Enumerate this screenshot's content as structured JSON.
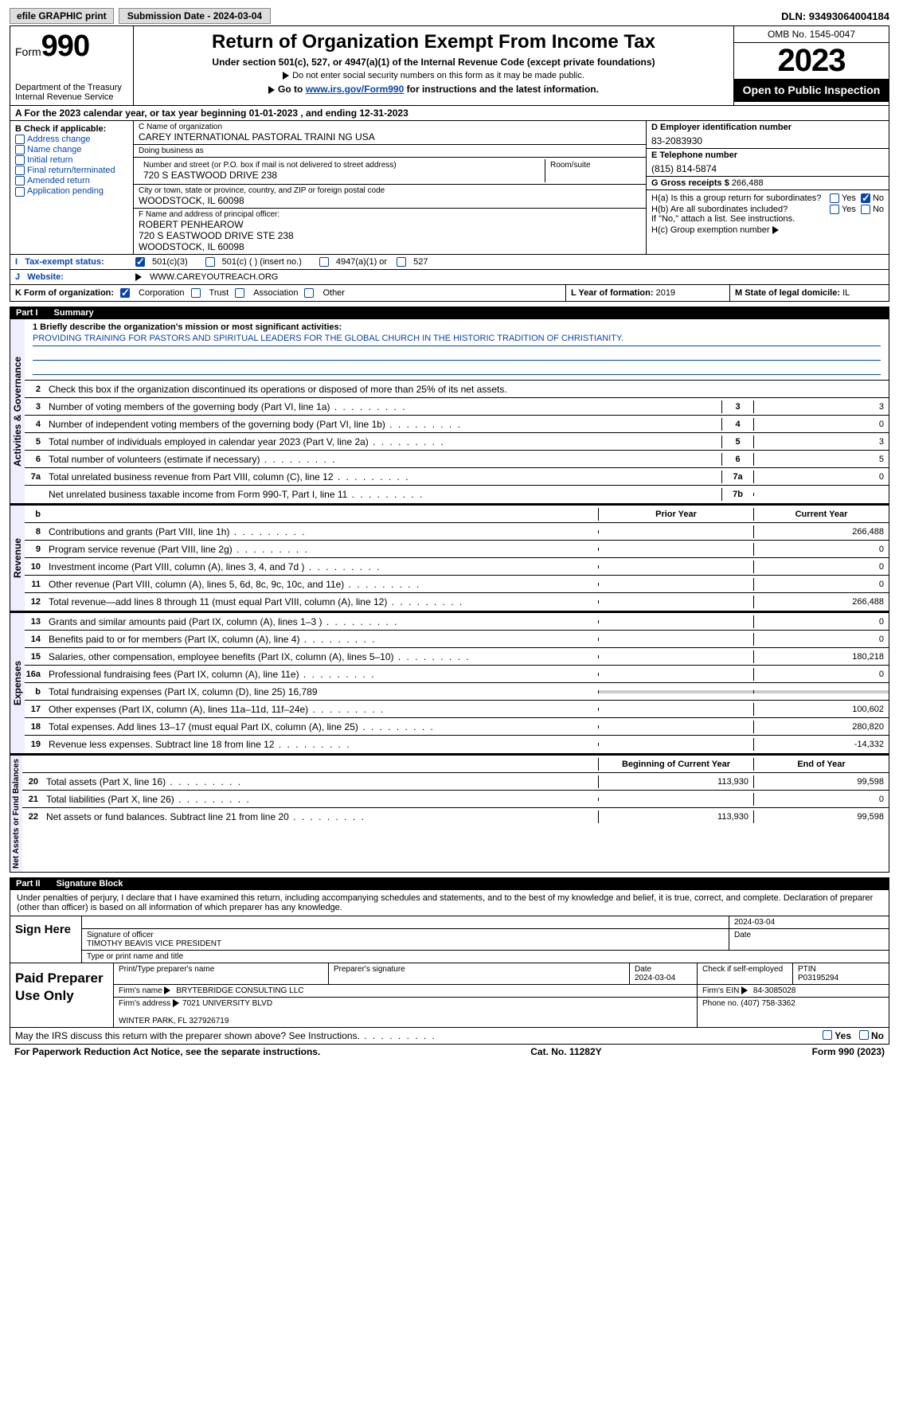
{
  "topbar": {
    "efile": "efile GRAPHIC print",
    "submission": "Submission Date - 2024-03-04",
    "dln": "DLN: 93493064004184"
  },
  "header": {
    "form_label": "Form",
    "form_num": "990",
    "dept": "Department of the Treasury\nInternal Revenue Service",
    "title": "Return of Organization Exempt From Income Tax",
    "subtitle": "Under section 501(c), 527, or 4947(a)(1) of the Internal Revenue Code (except private foundations)",
    "ssn_note": "Do not enter social security numbers on this form as it may be made public.",
    "goto": "Go to www.irs.gov/Form990 for instructions and the latest information.",
    "omb": "OMB No. 1545-0047",
    "year": "2023",
    "inspection": "Open to Public Inspection"
  },
  "rowA": "A For the 2023 calendar year, or tax year beginning 01-01-2023    , and ending 12-31-2023",
  "colB": {
    "header": "B Check if applicable:",
    "items": [
      "Address change",
      "Name change",
      "Initial return",
      "Final return/terminated",
      "Amended return",
      "Application pending"
    ]
  },
  "colC": {
    "name_lbl": "C Name of organization",
    "name": "CAREY INTERNATIONAL PASTORAL TRAINI NG USA",
    "dba_lbl": "Doing business as",
    "dba": "",
    "addr_lbl": "Number and street (or P.O. box if mail is not delivered to street address)",
    "addr": "720 S EASTWOOD DRIVE 238",
    "room_lbl": "Room/suite",
    "city_lbl": "City or town, state or province, country, and ZIP or foreign postal code",
    "city": "WOODSTOCK, IL  60098",
    "officer_lbl": "F  Name and address of principal officer:",
    "officer": "ROBERT PENHEAROW\n720 S EASTWOOD DRIVE STE 238\nWOODSTOCK, IL  60098"
  },
  "colD": {
    "ein_lbl": "D Employer identification number",
    "ein": "83-2083930",
    "phone_lbl": "E Telephone number",
    "phone": "(815) 814-5874",
    "gross_lbl": "G Gross receipts $",
    "gross": "266,488",
    "ha": "H(a)  Is this a group return for subordinates?",
    "hb": "H(b)  Are all subordinates included?",
    "hb_note": "If \"No,\" attach a list. See instructions.",
    "hc": "H(c)  Group exemption number",
    "yes": "Yes",
    "no": "No"
  },
  "statusI": {
    "lbl": "Tax-exempt status:",
    "opts": [
      "501(c)(3)",
      "501(c) (  ) (insert no.)",
      "4947(a)(1) or",
      "527"
    ]
  },
  "statusJ": {
    "lbl": "Website:",
    "val": "WWW.CAREYOUTREACH.ORG"
  },
  "statusK": {
    "lbl": "K Form of organization:",
    "opts": [
      "Corporation",
      "Trust",
      "Association",
      "Other"
    ]
  },
  "statusL": {
    "lbl": "L Year of formation:",
    "val": "2019"
  },
  "statusM": {
    "lbl": "M State of legal domicile:",
    "val": "IL"
  },
  "part1": {
    "title": "Part I",
    "name": "Summary",
    "mission_lbl": "1   Briefly describe the organization's mission or most significant activities:",
    "mission": "PROVIDING TRAINING FOR PASTORS AND SPIRITUAL LEADERS FOR THE GLOBAL CHURCH IN THE HISTORIC TRADITION OF CHRISTIANITY.",
    "line2": "Check this box       if the organization discontinued its operations or disposed of more than 25% of its net assets.",
    "gov_label": "Activities & Governance",
    "rev_label": "Revenue",
    "exp_label": "Expenses",
    "net_label": "Net Assets or Fund Balances",
    "prior_hdr": "Prior Year",
    "current_hdr": "Current Year",
    "boy_hdr": "Beginning of Current Year",
    "eoy_hdr": "End of Year",
    "rows_gov": [
      {
        "n": "3",
        "d": "Number of voting members of the governing body (Part VI, line 1a)",
        "box": "3",
        "v": "3"
      },
      {
        "n": "4",
        "d": "Number of independent voting members of the governing body (Part VI, line 1b)",
        "box": "4",
        "v": "0"
      },
      {
        "n": "5",
        "d": "Total number of individuals employed in calendar year 2023 (Part V, line 2a)",
        "box": "5",
        "v": "3"
      },
      {
        "n": "6",
        "d": "Total number of volunteers (estimate if necessary)",
        "box": "6",
        "v": "5"
      },
      {
        "n": "7a",
        "d": "Total unrelated business revenue from Part VIII, column (C), line 12",
        "box": "7a",
        "v": "0"
      },
      {
        "n": "",
        "d": "Net unrelated business taxable income from Form 990-T, Part I, line 11",
        "box": "7b",
        "v": ""
      }
    ],
    "rows_rev": [
      {
        "n": "8",
        "d": "Contributions and grants (Part VIII, line 1h)",
        "p": "",
        "c": "266,488"
      },
      {
        "n": "9",
        "d": "Program service revenue (Part VIII, line 2g)",
        "p": "",
        "c": "0"
      },
      {
        "n": "10",
        "d": "Investment income (Part VIII, column (A), lines 3, 4, and 7d )",
        "p": "",
        "c": "0"
      },
      {
        "n": "11",
        "d": "Other revenue (Part VIII, column (A), lines 5, 6d, 8c, 9c, 10c, and 11e)",
        "p": "",
        "c": "0"
      },
      {
        "n": "12",
        "d": "Total revenue—add lines 8 through 11 (must equal Part VIII, column (A), line 12)",
        "p": "",
        "c": "266,488"
      }
    ],
    "rows_exp": [
      {
        "n": "13",
        "d": "Grants and similar amounts paid (Part IX, column (A), lines 1–3 )",
        "p": "",
        "c": "0"
      },
      {
        "n": "14",
        "d": "Benefits paid to or for members (Part IX, column (A), line 4)",
        "p": "",
        "c": "0"
      },
      {
        "n": "15",
        "d": "Salaries, other compensation, employee benefits (Part IX, column (A), lines 5–10)",
        "p": "",
        "c": "180,218"
      },
      {
        "n": "16a",
        "d": "Professional fundraising fees (Part IX, column (A), line 11e)",
        "p": "",
        "c": "0"
      },
      {
        "n": "b",
        "d": "Total fundraising expenses (Part IX, column (D), line 25) 16,789",
        "p": "shaded",
        "c": "shaded"
      },
      {
        "n": "17",
        "d": "Other expenses (Part IX, column (A), lines 11a–11d, 11f–24e)",
        "p": "",
        "c": "100,602"
      },
      {
        "n": "18",
        "d": "Total expenses. Add lines 13–17 (must equal Part IX, column (A), line 25)",
        "p": "",
        "c": "280,820"
      },
      {
        "n": "19",
        "d": "Revenue less expenses. Subtract line 18 from line 12",
        "p": "",
        "c": "-14,332"
      }
    ],
    "rows_net": [
      {
        "n": "20",
        "d": "Total assets (Part X, line 16)",
        "p": "113,930",
        "c": "99,598"
      },
      {
        "n": "21",
        "d": "Total liabilities (Part X, line 26)",
        "p": "",
        "c": "0"
      },
      {
        "n": "22",
        "d": "Net assets or fund balances. Subtract line 21 from line 20",
        "p": "113,930",
        "c": "99,598"
      }
    ]
  },
  "part2": {
    "title": "Part II",
    "name": "Signature Block",
    "decl": "Under penalties of perjury, I declare that I have examined this return, including accompanying schedules and statements, and to the best of my knowledge and belief, it is true, correct, and complete. Declaration of preparer (other than officer) is based on all information of which preparer has any knowledge.",
    "sign_here": "Sign Here",
    "sig_officer": "Signature of officer",
    "officer_name": "TIMOTHY BEAVIS VICE PRESIDENT",
    "type_name": "Type or print name and title",
    "date_lbl": "Date",
    "date": "2024-03-04",
    "paid": "Paid Preparer Use Only",
    "prep_name_lbl": "Print/Type preparer's name",
    "prep_sig_lbl": "Preparer's signature",
    "prep_date": "2024-03-04",
    "self_emp": "Check       if self-employed",
    "ptin_lbl": "PTIN",
    "ptin": "P03195294",
    "firm_name_lbl": "Firm's name",
    "firm_name": "BRYTEBRIDGE CONSULTING LLC",
    "firm_ein_lbl": "Firm's EIN",
    "firm_ein": "84-3085028",
    "firm_addr_lbl": "Firm's address",
    "firm_addr": "7021 UNIVERSITY BLVD\n\nWINTER PARK, FL  327926719",
    "firm_phone_lbl": "Phone no.",
    "firm_phone": "(407) 758-3362",
    "discuss": "May the IRS discuss this return with the preparer shown above? See Instructions."
  },
  "footer": {
    "paperwork": "For Paperwork Reduction Act Notice, see the separate instructions.",
    "cat": "Cat. No. 11282Y",
    "form": "Form 990 (2023)"
  }
}
